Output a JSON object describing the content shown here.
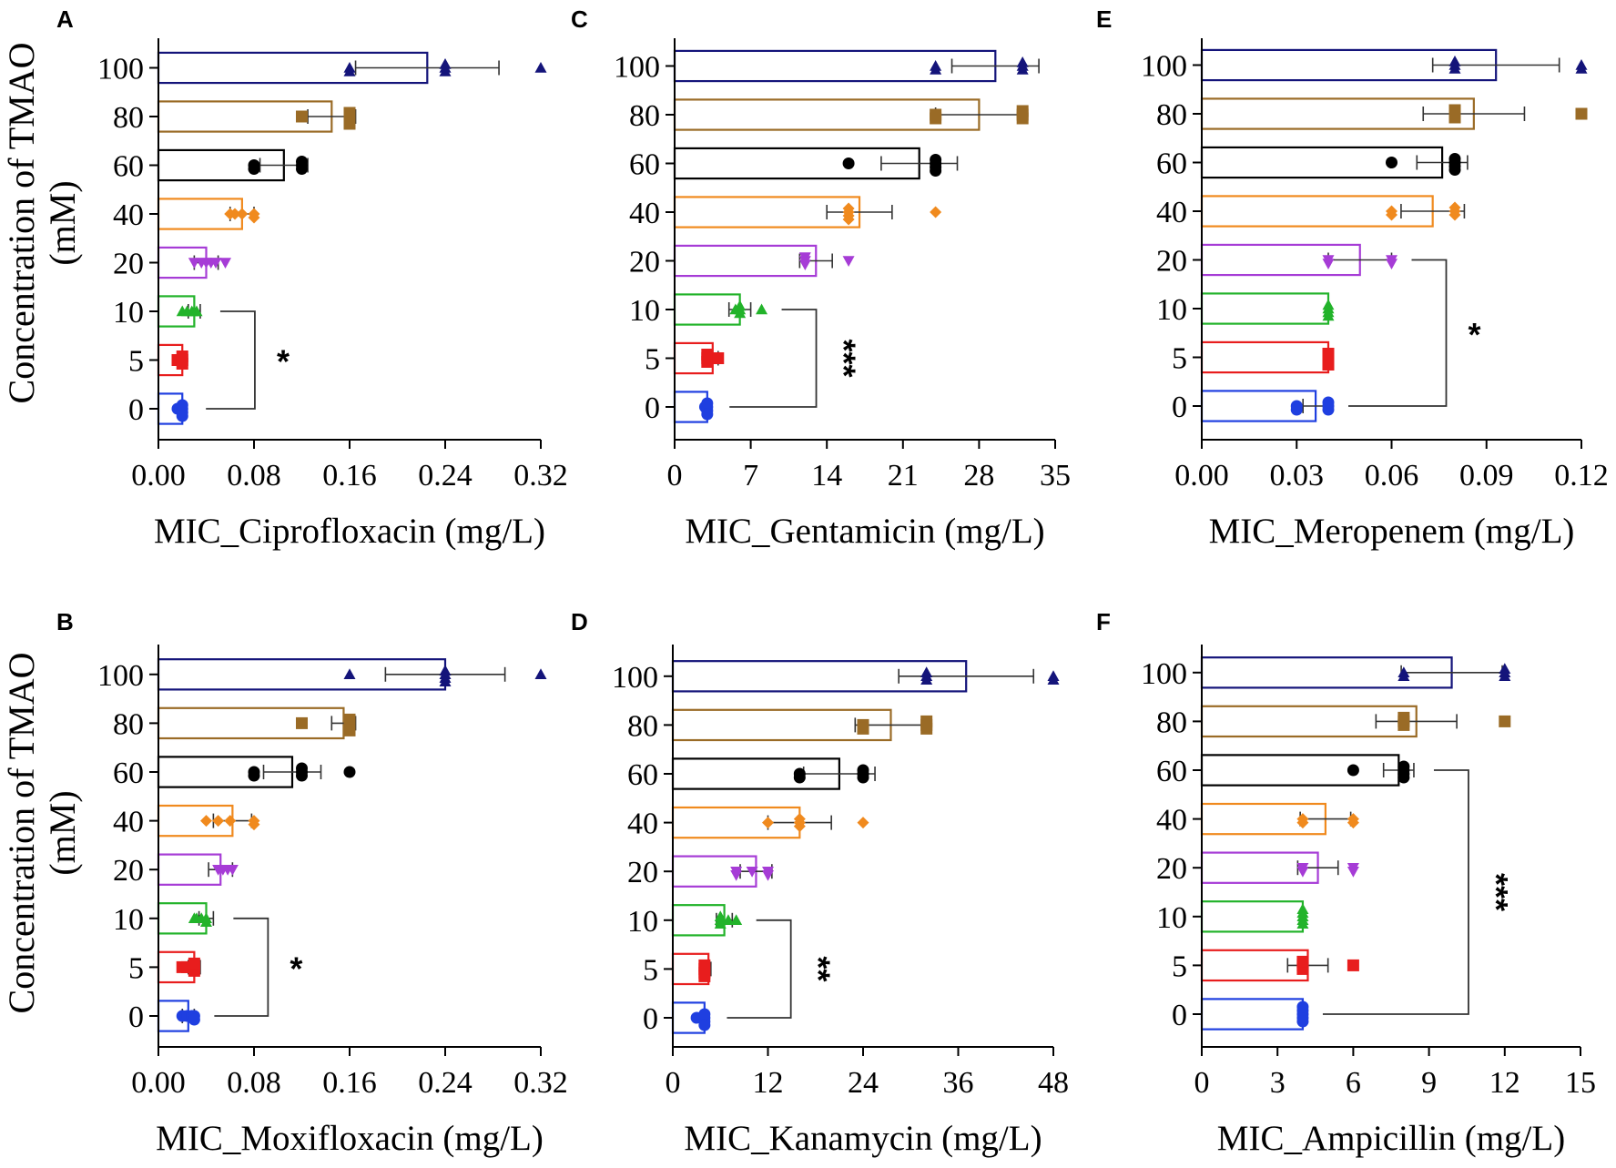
{
  "y_axis_title_line1": "Concentration of TMAO",
  "y_axis_title_line2": "(mM)",
  "series_colors": {
    "0": "#1f3fe0",
    "5": "#e81d1d",
    "10": "#22b32a",
    "20": "#a63cd6",
    "40": "#f08a1e",
    "60": "#000000",
    "80": "#9a6b26",
    "100": "#14147a"
  },
  "marker_shapes": {
    "0": "circle",
    "5": "square",
    "10": "triangle",
    "20": "triangle-down",
    "40": "diamond",
    "60": "circle",
    "80": "square",
    "100": "triangle"
  },
  "chart_data": [
    {
      "panel": "A",
      "type": "bar",
      "orientation": "horizontal",
      "xlabel": "MIC_Ciprofloxacin (mg/L)",
      "ylabel": "Concentration of TMAO (mM)",
      "xlim": [
        0,
        0.32
      ],
      "xticks": [
        "0.00",
        "0.08",
        "0.16",
        "0.24",
        "0.32"
      ],
      "categories": [
        "0",
        "5",
        "10",
        "20",
        "40",
        "60",
        "80",
        "100"
      ],
      "values": [
        0.02,
        0.02,
        0.03,
        0.04,
        0.07,
        0.105,
        0.145,
        0.225
      ],
      "errors": [
        0.003,
        0.003,
        0.005,
        0.01,
        0.01,
        0.02,
        0.02,
        0.06
      ],
      "points": [
        [
          0.016,
          0.018,
          0.02,
          0.02,
          0.02,
          0.02
        ],
        [
          0.016,
          0.02,
          0.02,
          0.02
        ],
        [
          0.02,
          0.024,
          0.028,
          0.03,
          0.032
        ],
        [
          0.03,
          0.036,
          0.04,
          0.044,
          0.048,
          0.056
        ],
        [
          0.06,
          0.064,
          0.07,
          0.08,
          0.08
        ],
        [
          0.08,
          0.08,
          0.12,
          0.12,
          0.12
        ],
        [
          0.12,
          0.16,
          0.16,
          0.16,
          0.16
        ],
        [
          0.16,
          0.16,
          0.24,
          0.24,
          0.24,
          0.32
        ]
      ],
      "bracket": {
        "from": "0",
        "to": "10",
        "label": "*",
        "orientation": "horizontal"
      }
    },
    {
      "panel": "B",
      "type": "bar",
      "orientation": "horizontal",
      "xlabel": "MIC_Moxifloxacin (mg/L)",
      "ylabel": "Concentration of TMAO (mM)",
      "xlim": [
        0,
        0.32
      ],
      "xticks": [
        "0.00",
        "0.08",
        "0.16",
        "0.24",
        "0.32"
      ],
      "categories": [
        "0",
        "5",
        "10",
        "20",
        "40",
        "60",
        "80",
        "100"
      ],
      "values": [
        0.025,
        0.03,
        0.04,
        0.052,
        0.062,
        0.112,
        0.155,
        0.24
      ],
      "errors": [
        0.005,
        0.005,
        0.006,
        0.01,
        0.016,
        0.024,
        0.01,
        0.05
      ],
      "points": [
        [
          0.02,
          0.024,
          0.028,
          0.03,
          0.03
        ],
        [
          0.02,
          0.024,
          0.03,
          0.03,
          0.03
        ],
        [
          0.03,
          0.032,
          0.036,
          0.04,
          0.04
        ],
        [
          0.05,
          0.054,
          0.058,
          0.062
        ],
        [
          0.04,
          0.05,
          0.06,
          0.08,
          0.08
        ],
        [
          0.08,
          0.08,
          0.12,
          0.12,
          0.12,
          0.16
        ],
        [
          0.12,
          0.16,
          0.16,
          0.16,
          0.16
        ],
        [
          0.16,
          0.24,
          0.24,
          0.24,
          0.24,
          0.32
        ]
      ],
      "bracket": {
        "from": "0",
        "to": "10",
        "label": "*",
        "orientation": "horizontal"
      }
    },
    {
      "panel": "C",
      "type": "bar",
      "orientation": "horizontal",
      "xlabel": "MIC_Gentamicin (mg/L)",
      "ylabel": "Concentration of TMAO (mM)",
      "xlim": [
        0,
        35
      ],
      "xticks": [
        "0",
        "7",
        "14",
        "21",
        "28",
        "35"
      ],
      "categories": [
        "0",
        "5",
        "10",
        "20",
        "40",
        "60",
        "80",
        "100"
      ],
      "values": [
        3,
        3.5,
        6,
        13,
        17,
        22.5,
        28,
        29.5
      ],
      "errors": [
        0.2,
        0.5,
        1,
        1.5,
        3,
        3.5,
        4,
        4
      ],
      "points": [
        [
          2.8,
          3,
          3,
          3,
          3
        ],
        [
          3,
          3,
          3,
          4
        ],
        [
          5.6,
          6,
          6,
          6,
          8
        ],
        [
          12,
          12,
          12,
          16
        ],
        [
          16,
          16,
          16,
          16,
          24
        ],
        [
          16,
          24,
          24,
          24,
          24
        ],
        [
          24,
          24,
          32,
          32,
          32
        ],
        [
          24,
          24,
          32,
          32,
          32
        ]
      ],
      "bracket": {
        "from": "0",
        "to": "10",
        "label": "***",
        "orientation": "vertical"
      }
    },
    {
      "panel": "D",
      "type": "bar",
      "orientation": "horizontal",
      "xlabel": "MIC_Kanamycin (mg/L)",
      "ylabel": "Concentration of TMAO (mM)",
      "xlim": [
        0,
        48
      ],
      "xticks": [
        "0",
        "12",
        "24",
        "36",
        "48"
      ],
      "categories": [
        "0",
        "5",
        "10",
        "20",
        "40",
        "60",
        "80",
        "100"
      ],
      "values": [
        4,
        4.5,
        6.5,
        10.5,
        16,
        21,
        27.5,
        37
      ],
      "errors": [
        0.3,
        0.3,
        1,
        2,
        4,
        4.5,
        4.5,
        8.5
      ],
      "points": [
        [
          3,
          4,
          4,
          4,
          4
        ],
        [
          4,
          4,
          4,
          4
        ],
        [
          6,
          6,
          6,
          7,
          8
        ],
        [
          8,
          8,
          10,
          12,
          12
        ],
        [
          12,
          16,
          16,
          16,
          24
        ],
        [
          16,
          16,
          24,
          24,
          24
        ],
        [
          24,
          24,
          32,
          32,
          32
        ],
        [
          32,
          32,
          32,
          48,
          48
        ]
      ],
      "bracket": {
        "from": "0",
        "to": "10",
        "label": "**",
        "orientation": "vertical"
      }
    },
    {
      "panel": "E",
      "type": "bar",
      "orientation": "horizontal",
      "xlabel": "MIC_Meropenem (mg/L)",
      "ylabel": "Concentration of TMAO (mM)",
      "xlim": [
        0,
        0.12
      ],
      "xticks": [
        "0.00",
        "0.03",
        "0.06",
        "0.09",
        "0.12"
      ],
      "categories": [
        "0",
        "5",
        "10",
        "20",
        "40",
        "60",
        "80",
        "100"
      ],
      "values": [
        0.036,
        0.04,
        0.04,
        0.05,
        0.073,
        0.076,
        0.086,
        0.093
      ],
      "errors": [
        0.004,
        0,
        0,
        0.01,
        0.01,
        0.008,
        0.016,
        0.02
      ],
      "points": [
        [
          0.03,
          0.03,
          0.04,
          0.04,
          0.04
        ],
        [
          0.04,
          0.04,
          0.04,
          0.04
        ],
        [
          0.04,
          0.04,
          0.04,
          0.04
        ],
        [
          0.04,
          0.04,
          0.06,
          0.06
        ],
        [
          0.06,
          0.06,
          0.08,
          0.08,
          0.08
        ],
        [
          0.06,
          0.08,
          0.08,
          0.08,
          0.08
        ],
        [
          0.08,
          0.08,
          0.08,
          0.12
        ],
        [
          0.08,
          0.08,
          0.08,
          0.12,
          0.12
        ]
      ],
      "bracket": {
        "from": "0",
        "to": "20",
        "label": "*",
        "orientation": "horizontal"
      }
    },
    {
      "panel": "F",
      "type": "bar",
      "orientation": "horizontal",
      "xlabel": "MIC_Ampicillin (mg/L)",
      "ylabel": "Concentration of TMAO (mM)",
      "xlim": [
        0,
        15
      ],
      "xticks": [
        "0",
        "3",
        "6",
        "9",
        "12",
        "15"
      ],
      "categories": [
        "0",
        "5",
        "10",
        "20",
        "40",
        "60",
        "80",
        "100"
      ],
      "values": [
        4,
        4.2,
        4,
        4.6,
        4.9,
        7.8,
        8.5,
        9.9
      ],
      "errors": [
        0,
        0.8,
        0,
        0.8,
        1,
        0.6,
        1.6,
        2
      ],
      "points": [
        [
          4,
          4,
          4,
          4,
          4
        ],
        [
          4,
          4,
          4,
          6
        ],
        [
          4,
          4,
          4,
          4,
          4
        ],
        [
          4,
          4,
          6,
          6
        ],
        [
          4,
          4,
          6,
          6
        ],
        [
          6,
          8,
          8,
          8,
          8
        ],
        [
          8,
          8,
          8,
          12
        ],
        [
          8,
          8,
          12,
          12,
          12
        ]
      ],
      "bracket": {
        "from": "0",
        "to": "60",
        "label": "***",
        "orientation": "vertical"
      }
    }
  ]
}
